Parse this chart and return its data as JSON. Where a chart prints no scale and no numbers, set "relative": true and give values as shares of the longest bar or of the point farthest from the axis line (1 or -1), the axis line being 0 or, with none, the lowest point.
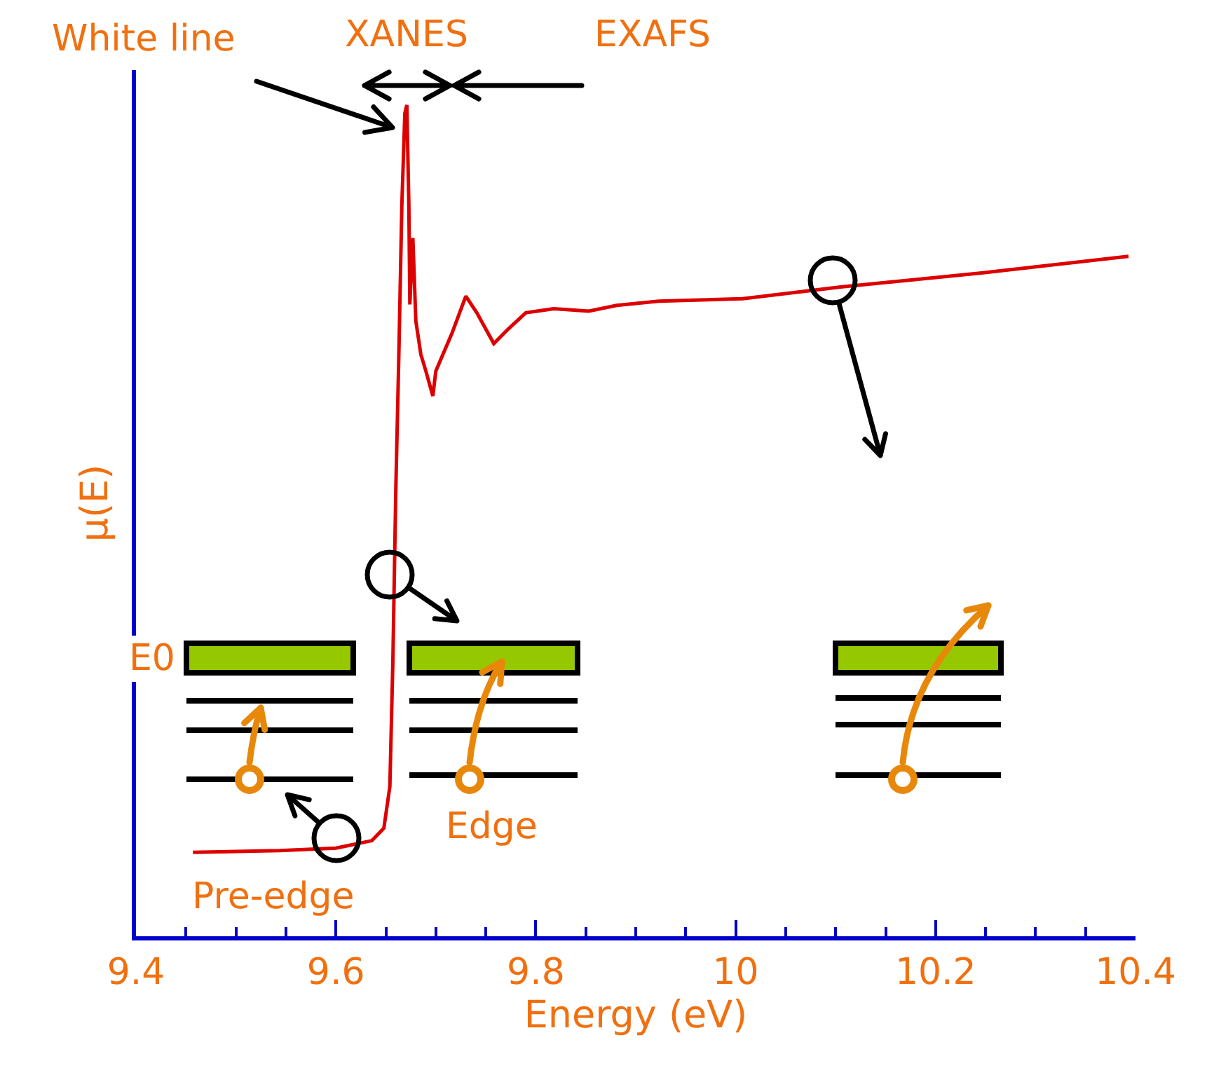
{
  "chart_data": {
    "type": "line",
    "relative": true,
    "xlabel": "Energy (eV)",
    "ylabel": "μ(E)",
    "annotations": [
      "White line",
      "XANES",
      "EXAFS",
      "Pre-edge",
      "Edge",
      "E0"
    ],
    "xlim": [
      9.4,
      10.4
    ],
    "xticks": [
      9.4,
      {
        "value": 9.45,
        "label": null
      },
      9.6,
      {
        "value": 9.5,
        "label": null
      },
      {
        "value": 9.55,
        "label": null
      },
      {
        "value": 9.65,
        "label": null
      },
      {
        "value": 9.7,
        "label": null
      },
      {
        "value": 9.75,
        "label": null
      },
      9.8,
      {
        "value": 9.85,
        "label": null
      },
      {
        "value": 9.9,
        "label": null
      },
      {
        "value": 9.95,
        "label": null
      },
      10,
      {
        "value": 10.05,
        "label": null
      },
      {
        "value": 10.1,
        "label": null
      },
      {
        "value": 10.15,
        "label": null
      },
      10.2,
      {
        "value": 10.25,
        "label": null
      },
      {
        "value": 10.3,
        "label": null
      },
      {
        "value": 10.35,
        "label": null
      },
      10.4
    ],
    "grid": false,
    "marker": "none",
    "line_style": "solid",
    "series": [
      {
        "color": "#dd0000",
        "x": [
          9.457,
          9.544,
          9.6,
          9.636,
          9.648,
          9.654,
          9.657,
          9.66,
          9.663,
          9.666,
          9.669,
          9.671,
          9.673,
          9.674,
          9.677,
          9.68,
          9.685,
          9.69,
          9.697,
          9.7,
          9.716,
          9.73,
          9.741,
          9.758,
          9.772,
          9.79,
          9.818,
          9.853,
          9.881,
          9.923,
          10.007,
          10.105,
          10.246,
          10.393
        ],
        "values": [
          0.101,
          0.103,
          0.106,
          0.115,
          0.13,
          0.18,
          0.33,
          0.54,
          0.7,
          0.88,
          0.99,
          1.0,
          0.88,
          0.76,
          0.84,
          0.74,
          0.7,
          0.68,
          0.65,
          0.68,
          0.725,
          0.77,
          0.75,
          0.713,
          0.73,
          0.75,
          0.755,
          0.752,
          0.759,
          0.764,
          0.767,
          0.781,
          0.798,
          0.818
        ]
      }
    ]
  }
}
